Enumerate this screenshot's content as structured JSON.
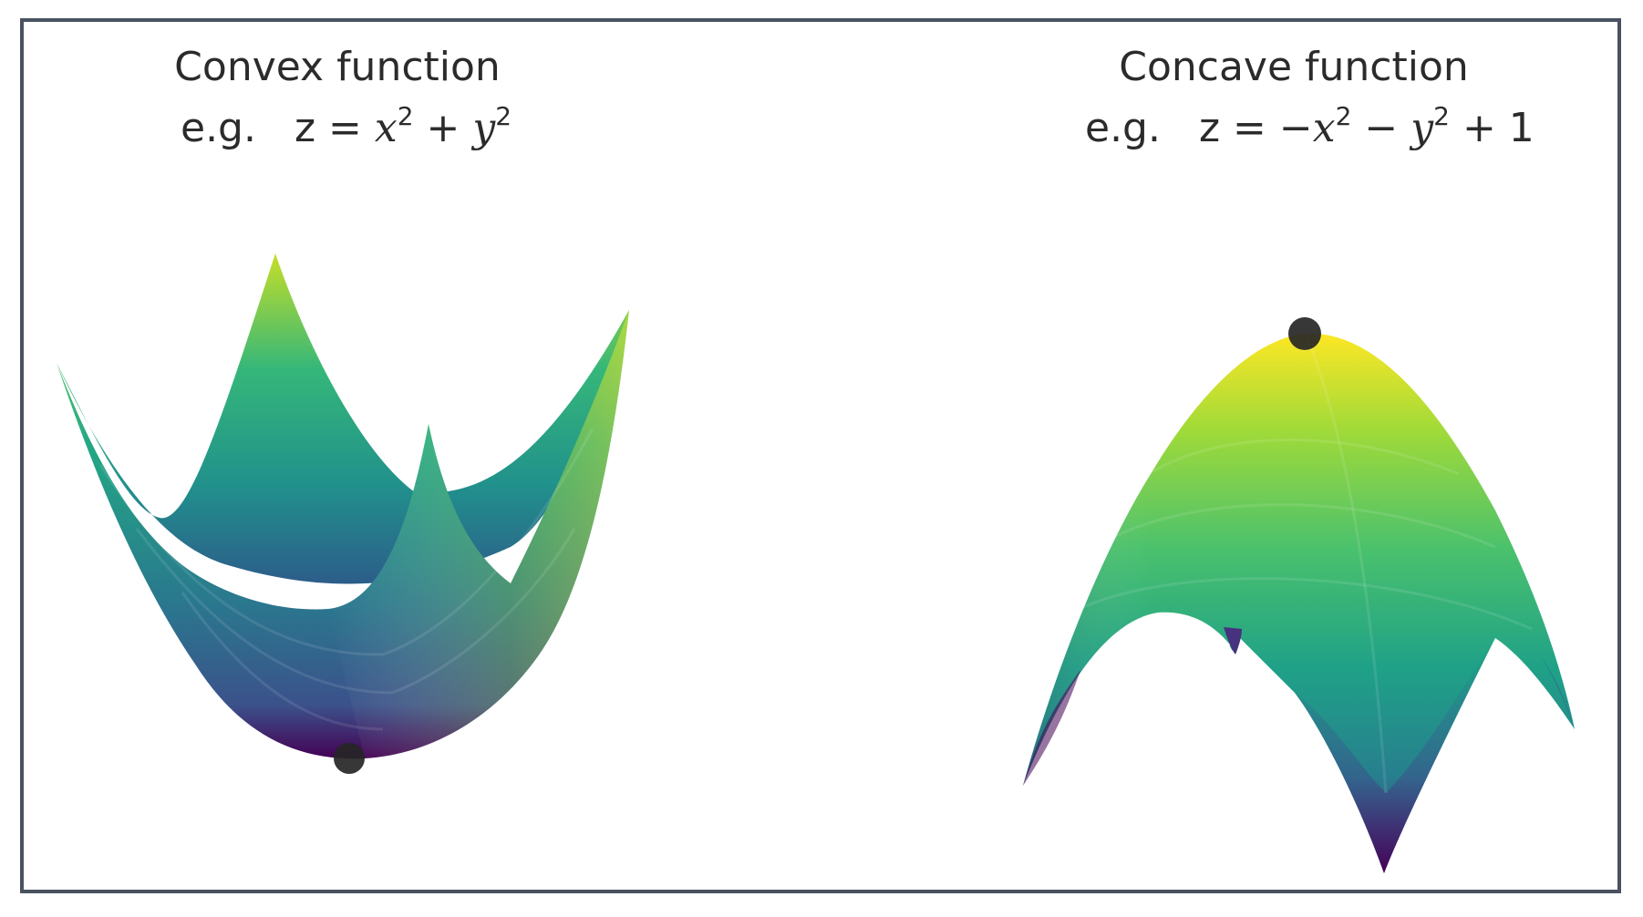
{
  "panels": [
    {
      "title": "Convex function",
      "eg": "e.g.",
      "eq_prefix": "z = ",
      "eq_terms": [
        {
          "var": "x",
          "exp": "2",
          "op": " + "
        },
        {
          "var": "y",
          "exp": "2",
          "op": ""
        }
      ],
      "eq_suffix": "",
      "marker": "minimum",
      "colormap": "viridis"
    },
    {
      "title": "Concave function",
      "eg": "e.g.",
      "eq_prefix": "z = −",
      "eq_terms": [
        {
          "var": "x",
          "exp": "2",
          "op": " − "
        },
        {
          "var": "y",
          "exp": "2",
          "op": " + "
        }
      ],
      "eq_suffix": "1",
      "marker": "maximum",
      "colormap": "viridis"
    }
  ],
  "colors": {
    "frame": "#4a5260",
    "marker": "#262626",
    "viridis_low": "#440154",
    "viridis_mid": "#21918c",
    "viridis_high": "#fde725"
  }
}
